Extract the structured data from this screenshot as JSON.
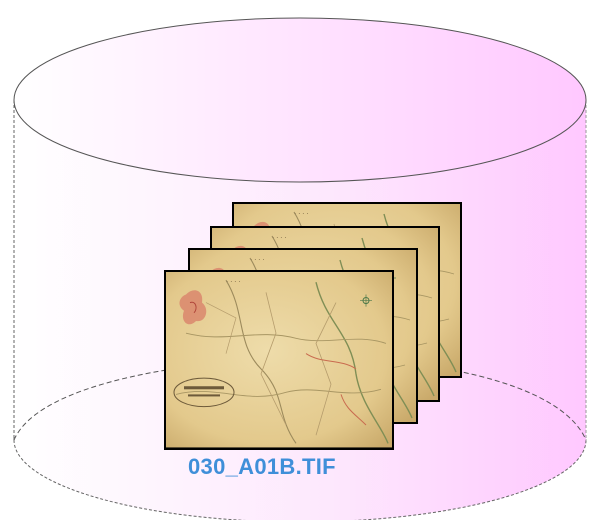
{
  "storage": {
    "shape": "cylinder",
    "gradient_start": "#ffffff",
    "gradient_end": "#ffccff",
    "outline_color": "#666666"
  },
  "file_stack": {
    "sheet_count": 4,
    "sheet_kind": "scanned historical map",
    "paper_color": "#e6cf95",
    "frame_color": "#000000",
    "label": "030_A01B.TIF",
    "label_color": "#3f8fd9"
  }
}
